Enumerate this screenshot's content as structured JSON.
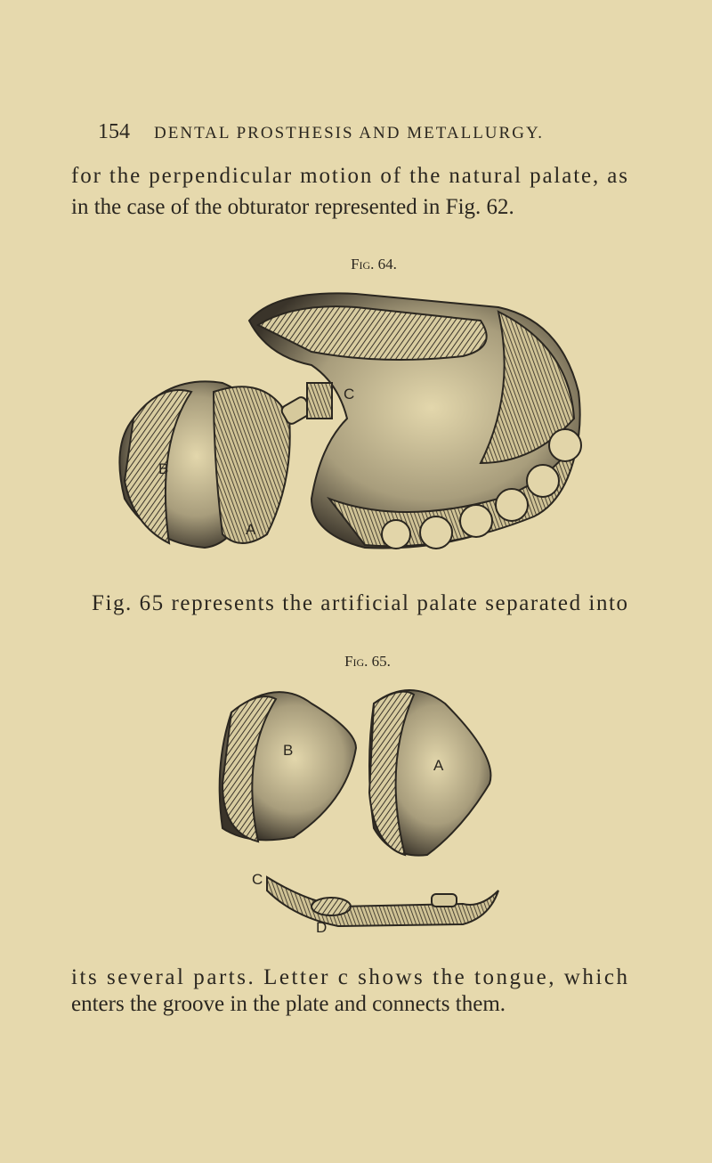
{
  "header": {
    "page_number": "154",
    "title": "DENTAL PROSTHESIS AND METALLURGY."
  },
  "paragraphs": [
    [
      "for the perpendicular motion of the natural palate, as",
      "in the case of the obturator represented in Fig. 62."
    ],
    [
      "Fig. 65 represents the artificial palate separated into"
    ],
    [
      "its several parts.  Letter c shows the tongue, which",
      "enters the groove in the plate and connects them."
    ]
  ],
  "figures": [
    {
      "caption": "Fig. 64.",
      "labels": [
        "C",
        "B",
        "A"
      ]
    },
    {
      "caption": "Fig. 65.",
      "labels": [
        "B",
        "A",
        "C",
        "D"
      ]
    }
  ]
}
